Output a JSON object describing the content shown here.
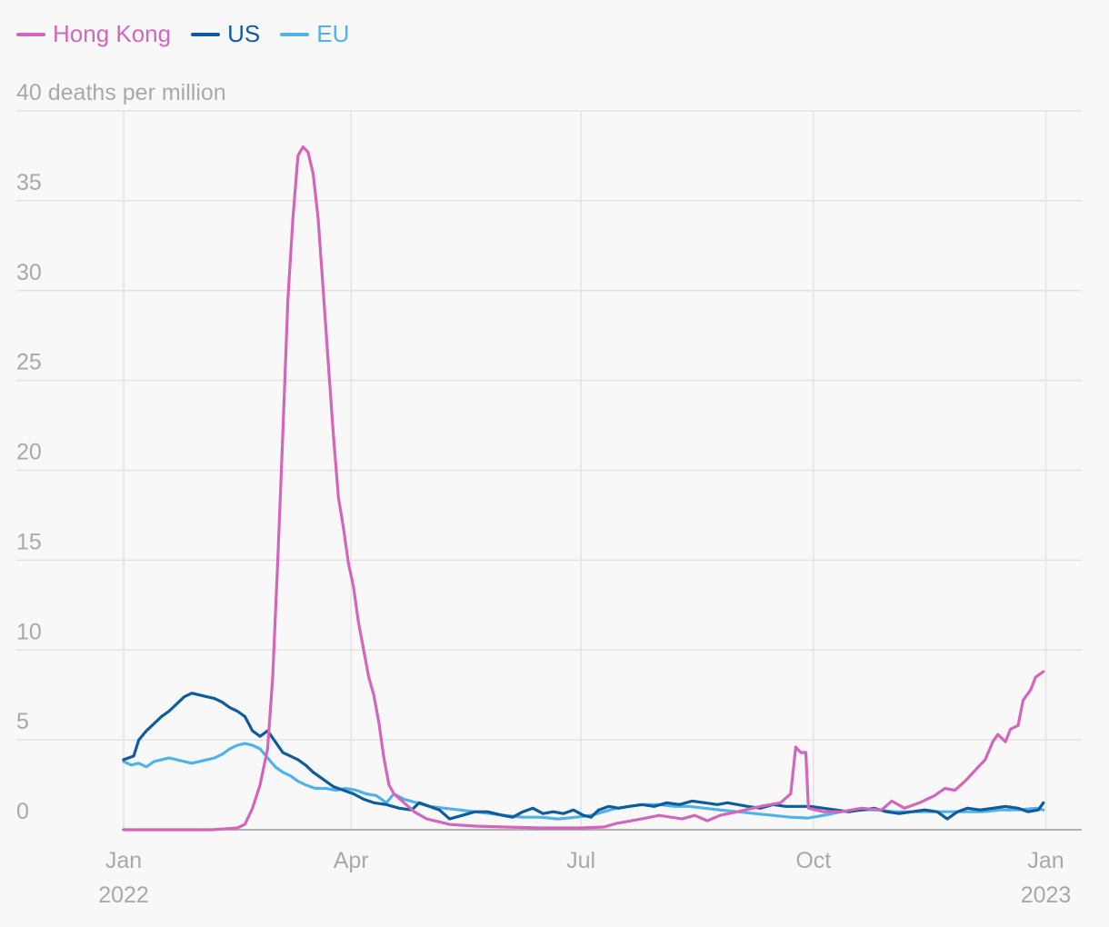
{
  "chart_data": {
    "type": "line",
    "ylabel": "deaths per million",
    "ylim": [
      0,
      40
    ],
    "yticks": [
      0,
      5,
      10,
      15,
      20,
      25,
      30,
      35,
      40
    ],
    "top_tick_label": "40 deaths per million",
    "xlim": [
      "2022-01-01",
      "2023-01-08"
    ],
    "xticks": [
      {
        "date": "2022-01-01",
        "label": "Jan",
        "sublabel": "2022"
      },
      {
        "date": "2022-04-01",
        "label": "Apr",
        "sublabel": ""
      },
      {
        "date": "2022-07-01",
        "label": "Jul",
        "sublabel": ""
      },
      {
        "date": "2022-10-01",
        "label": "Oct",
        "sublabel": ""
      },
      {
        "date": "2023-01-01",
        "label": "Jan",
        "sublabel": "2023"
      }
    ],
    "grid": true,
    "legend": "top-left",
    "series": [
      {
        "name": "Hong Kong",
        "color": "#d465bc",
        "points": [
          [
            "2022-01-01",
            0
          ],
          [
            "2022-01-20",
            0
          ],
          [
            "2022-02-05",
            0
          ],
          [
            "2022-02-15",
            0.1
          ],
          [
            "2022-02-18",
            0.3
          ],
          [
            "2022-02-21",
            1.2
          ],
          [
            "2022-02-24",
            2.5
          ],
          [
            "2022-02-27",
            4.5
          ],
          [
            "2022-03-01",
            8.5
          ],
          [
            "2022-03-03",
            15
          ],
          [
            "2022-03-05",
            22
          ],
          [
            "2022-03-07",
            29.5
          ],
          [
            "2022-03-09",
            34
          ],
          [
            "2022-03-11",
            37.5
          ],
          [
            "2022-03-13",
            38
          ],
          [
            "2022-03-15",
            37.7
          ],
          [
            "2022-03-17",
            36.5
          ],
          [
            "2022-03-19",
            34
          ],
          [
            "2022-03-21",
            30
          ],
          [
            "2022-03-23",
            26
          ],
          [
            "2022-03-25",
            22
          ],
          [
            "2022-03-27",
            18.5
          ],
          [
            "2022-03-29",
            16.8
          ],
          [
            "2022-03-31",
            14.8
          ],
          [
            "2022-04-02",
            13.5
          ],
          [
            "2022-04-04",
            11.5
          ],
          [
            "2022-04-06",
            10
          ],
          [
            "2022-04-08",
            8.5
          ],
          [
            "2022-04-10",
            7.5
          ],
          [
            "2022-04-12",
            6
          ],
          [
            "2022-04-14",
            4
          ],
          [
            "2022-04-16",
            2.5
          ],
          [
            "2022-04-18",
            2
          ],
          [
            "2022-04-22",
            1.5
          ],
          [
            "2022-04-26",
            1.0
          ],
          [
            "2022-05-01",
            0.6
          ],
          [
            "2022-05-10",
            0.3
          ],
          [
            "2022-05-20",
            0.2
          ],
          [
            "2022-06-01",
            0.15
          ],
          [
            "2022-06-15",
            0.1
          ],
          [
            "2022-07-01",
            0.1
          ],
          [
            "2022-07-10",
            0.15
          ],
          [
            "2022-07-15",
            0.35
          ],
          [
            "2022-07-25",
            0.6
          ],
          [
            "2022-08-01",
            0.8
          ],
          [
            "2022-08-10",
            0.6
          ],
          [
            "2022-08-15",
            0.8
          ],
          [
            "2022-08-20",
            0.5
          ],
          [
            "2022-08-25",
            0.8
          ],
          [
            "2022-09-01",
            1.0
          ],
          [
            "2022-09-10",
            1.3
          ],
          [
            "2022-09-18",
            1.5
          ],
          [
            "2022-09-22",
            2.0
          ],
          [
            "2022-09-24",
            4.6
          ],
          [
            "2022-09-26",
            4.3
          ],
          [
            "2022-09-28",
            4.3
          ],
          [
            "2022-09-29",
            1.2
          ],
          [
            "2022-10-05",
            1.0
          ],
          [
            "2022-10-12",
            1.0
          ],
          [
            "2022-10-20",
            1.2
          ],
          [
            "2022-10-28",
            1.1
          ],
          [
            "2022-11-01",
            1.6
          ],
          [
            "2022-11-06",
            1.2
          ],
          [
            "2022-11-12",
            1.5
          ],
          [
            "2022-11-18",
            1.9
          ],
          [
            "2022-11-22",
            2.3
          ],
          [
            "2022-11-26",
            2.2
          ],
          [
            "2022-11-30",
            2.7
          ],
          [
            "2022-12-04",
            3.3
          ],
          [
            "2022-12-08",
            3.9
          ],
          [
            "2022-12-11",
            4.9
          ],
          [
            "2022-12-13",
            5.3
          ],
          [
            "2022-12-16",
            4.9
          ],
          [
            "2022-12-18",
            5.6
          ],
          [
            "2022-12-21",
            5.8
          ],
          [
            "2022-12-23",
            7.2
          ],
          [
            "2022-12-26",
            7.8
          ],
          [
            "2022-12-28",
            8.5
          ],
          [
            "2022-12-31",
            8.8
          ]
        ]
      },
      {
        "name": "US",
        "color": "#0f5c9c",
        "points": [
          [
            "2022-01-01",
            3.9
          ],
          [
            "2022-01-03",
            4.0
          ],
          [
            "2022-01-05",
            4.1
          ],
          [
            "2022-01-07",
            5.0
          ],
          [
            "2022-01-10",
            5.5
          ],
          [
            "2022-01-13",
            5.9
          ],
          [
            "2022-01-16",
            6.3
          ],
          [
            "2022-01-19",
            6.6
          ],
          [
            "2022-01-22",
            7.0
          ],
          [
            "2022-01-25",
            7.4
          ],
          [
            "2022-01-28",
            7.6
          ],
          [
            "2022-01-31",
            7.5
          ],
          [
            "2022-02-03",
            7.4
          ],
          [
            "2022-02-06",
            7.3
          ],
          [
            "2022-02-09",
            7.1
          ],
          [
            "2022-02-12",
            6.8
          ],
          [
            "2022-02-15",
            6.6
          ],
          [
            "2022-02-18",
            6.3
          ],
          [
            "2022-02-21",
            5.5
          ],
          [
            "2022-02-24",
            5.2
          ],
          [
            "2022-02-27",
            5.5
          ],
          [
            "2022-03-02",
            4.9
          ],
          [
            "2022-03-05",
            4.3
          ],
          [
            "2022-03-08",
            4.1
          ],
          [
            "2022-03-11",
            3.9
          ],
          [
            "2022-03-14",
            3.6
          ],
          [
            "2022-03-17",
            3.2
          ],
          [
            "2022-03-21",
            2.8
          ],
          [
            "2022-03-25",
            2.4
          ],
          [
            "2022-03-29",
            2.2
          ],
          [
            "2022-04-02",
            2.0
          ],
          [
            "2022-04-06",
            1.7
          ],
          [
            "2022-04-10",
            1.5
          ],
          [
            "2022-04-15",
            1.4
          ],
          [
            "2022-04-20",
            1.2
          ],
          [
            "2022-04-25",
            1.1
          ],
          [
            "2022-04-28",
            1.5
          ],
          [
            "2022-05-02",
            1.3
          ],
          [
            "2022-05-06",
            1.1
          ],
          [
            "2022-05-10",
            0.6
          ],
          [
            "2022-05-15",
            0.8
          ],
          [
            "2022-05-20",
            1.0
          ],
          [
            "2022-05-25",
            1.0
          ],
          [
            "2022-05-31",
            0.8
          ],
          [
            "2022-06-04",
            0.7
          ],
          [
            "2022-06-08",
            1.0
          ],
          [
            "2022-06-12",
            1.2
          ],
          [
            "2022-06-16",
            0.9
          ],
          [
            "2022-06-20",
            1.0
          ],
          [
            "2022-06-24",
            0.9
          ],
          [
            "2022-06-28",
            1.1
          ],
          [
            "2022-07-02",
            0.8
          ],
          [
            "2022-07-05",
            0.7
          ],
          [
            "2022-07-08",
            1.1
          ],
          [
            "2022-07-12",
            1.3
          ],
          [
            "2022-07-16",
            1.2
          ],
          [
            "2022-07-20",
            1.3
          ],
          [
            "2022-07-25",
            1.4
          ],
          [
            "2022-07-30",
            1.3
          ],
          [
            "2022-08-04",
            1.5
          ],
          [
            "2022-08-09",
            1.4
          ],
          [
            "2022-08-14",
            1.6
          ],
          [
            "2022-08-19",
            1.5
          ],
          [
            "2022-08-24",
            1.4
          ],
          [
            "2022-08-28",
            1.5
          ],
          [
            "2022-09-01",
            1.4
          ],
          [
            "2022-09-05",
            1.3
          ],
          [
            "2022-09-10",
            1.2
          ],
          [
            "2022-09-15",
            1.4
          ],
          [
            "2022-09-20",
            1.3
          ],
          [
            "2022-09-25",
            1.3
          ],
          [
            "2022-09-30",
            1.3
          ],
          [
            "2022-10-05",
            1.2
          ],
          [
            "2022-10-10",
            1.1
          ],
          [
            "2022-10-15",
            1.0
          ],
          [
            "2022-10-20",
            1.1
          ],
          [
            "2022-10-25",
            1.2
          ],
          [
            "2022-10-30",
            1.0
          ],
          [
            "2022-11-04",
            0.9
          ],
          [
            "2022-11-09",
            1.0
          ],
          [
            "2022-11-14",
            1.1
          ],
          [
            "2022-11-19",
            1.0
          ],
          [
            "2022-11-23",
            0.6
          ],
          [
            "2022-11-27",
            1.0
          ],
          [
            "2022-12-01",
            1.2
          ],
          [
            "2022-12-06",
            1.1
          ],
          [
            "2022-12-11",
            1.2
          ],
          [
            "2022-12-16",
            1.3
          ],
          [
            "2022-12-21",
            1.2
          ],
          [
            "2022-12-25",
            1.0
          ],
          [
            "2022-12-29",
            1.1
          ],
          [
            "2022-12-31",
            1.5
          ]
        ]
      },
      {
        "name": "EU",
        "color": "#52b2e6",
        "points": [
          [
            "2022-01-01",
            3.8
          ],
          [
            "2022-01-04",
            3.6
          ],
          [
            "2022-01-07",
            3.7
          ],
          [
            "2022-01-10",
            3.5
          ],
          [
            "2022-01-13",
            3.8
          ],
          [
            "2022-01-16",
            3.9
          ],
          [
            "2022-01-19",
            4.0
          ],
          [
            "2022-01-22",
            3.9
          ],
          [
            "2022-01-25",
            3.8
          ],
          [
            "2022-01-28",
            3.7
          ],
          [
            "2022-01-31",
            3.8
          ],
          [
            "2022-02-03",
            3.9
          ],
          [
            "2022-02-06",
            4.0
          ],
          [
            "2022-02-09",
            4.2
          ],
          [
            "2022-02-12",
            4.5
          ],
          [
            "2022-02-15",
            4.7
          ],
          [
            "2022-02-18",
            4.8
          ],
          [
            "2022-02-21",
            4.7
          ],
          [
            "2022-02-24",
            4.5
          ],
          [
            "2022-02-27",
            4.0
          ],
          [
            "2022-03-02",
            3.5
          ],
          [
            "2022-03-05",
            3.2
          ],
          [
            "2022-03-08",
            3.0
          ],
          [
            "2022-03-11",
            2.7
          ],
          [
            "2022-03-14",
            2.5
          ],
          [
            "2022-03-18",
            2.3
          ],
          [
            "2022-03-22",
            2.3
          ],
          [
            "2022-03-26",
            2.2
          ],
          [
            "2022-03-30",
            2.3
          ],
          [
            "2022-04-03",
            2.2
          ],
          [
            "2022-04-07",
            2.0
          ],
          [
            "2022-04-11",
            1.9
          ],
          [
            "2022-04-15",
            1.5
          ],
          [
            "2022-04-18",
            2.0
          ],
          [
            "2022-04-22",
            1.7
          ],
          [
            "2022-04-27",
            1.5
          ],
          [
            "2022-05-02",
            1.3
          ],
          [
            "2022-05-08",
            1.2
          ],
          [
            "2022-05-14",
            1.1
          ],
          [
            "2022-05-20",
            1.0
          ],
          [
            "2022-05-26",
            0.9
          ],
          [
            "2022-06-01",
            0.8
          ],
          [
            "2022-06-08",
            0.7
          ],
          [
            "2022-06-15",
            0.7
          ],
          [
            "2022-06-22",
            0.6
          ],
          [
            "2022-06-29",
            0.7
          ],
          [
            "2022-07-05",
            0.8
          ],
          [
            "2022-07-10",
            1.0
          ],
          [
            "2022-07-15",
            1.2
          ],
          [
            "2022-07-20",
            1.3
          ],
          [
            "2022-07-26",
            1.4
          ],
          [
            "2022-08-01",
            1.4
          ],
          [
            "2022-08-07",
            1.3
          ],
          [
            "2022-08-13",
            1.3
          ],
          [
            "2022-08-19",
            1.2
          ],
          [
            "2022-08-25",
            1.1
          ],
          [
            "2022-09-01",
            1.0
          ],
          [
            "2022-09-08",
            0.9
          ],
          [
            "2022-09-15",
            0.8
          ],
          [
            "2022-09-22",
            0.7
          ],
          [
            "2022-09-29",
            0.65
          ],
          [
            "2022-10-05",
            0.8
          ],
          [
            "2022-10-12",
            1.0
          ],
          [
            "2022-10-19",
            1.1
          ],
          [
            "2022-10-26",
            1.1
          ],
          [
            "2022-11-02",
            1.0
          ],
          [
            "2022-11-09",
            1.0
          ],
          [
            "2022-11-16",
            1.0
          ],
          [
            "2022-11-23",
            1.0
          ],
          [
            "2022-11-30",
            1.0
          ],
          [
            "2022-12-07",
            1.0
          ],
          [
            "2022-12-14",
            1.1
          ],
          [
            "2022-12-21",
            1.1
          ],
          [
            "2022-12-28",
            1.2
          ],
          [
            "2022-12-31",
            1.1
          ]
        ]
      }
    ]
  }
}
